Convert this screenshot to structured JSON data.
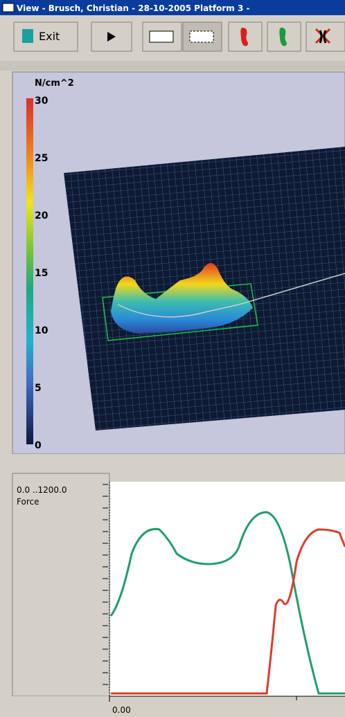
{
  "window": {
    "title": "View - Brusch, Christian - 28-10-2005 Platform 3 -"
  },
  "toolbar": {
    "exit": "Exit"
  },
  "pressure_view": {
    "unit": "N/cm^2",
    "scale_ticks": [
      "30",
      "25",
      "20",
      "15",
      "10",
      "5",
      "0"
    ]
  },
  "force_graph": {
    "range": "0.0 ..1200.0",
    "label": "Force",
    "x_start": "0.00"
  }
}
